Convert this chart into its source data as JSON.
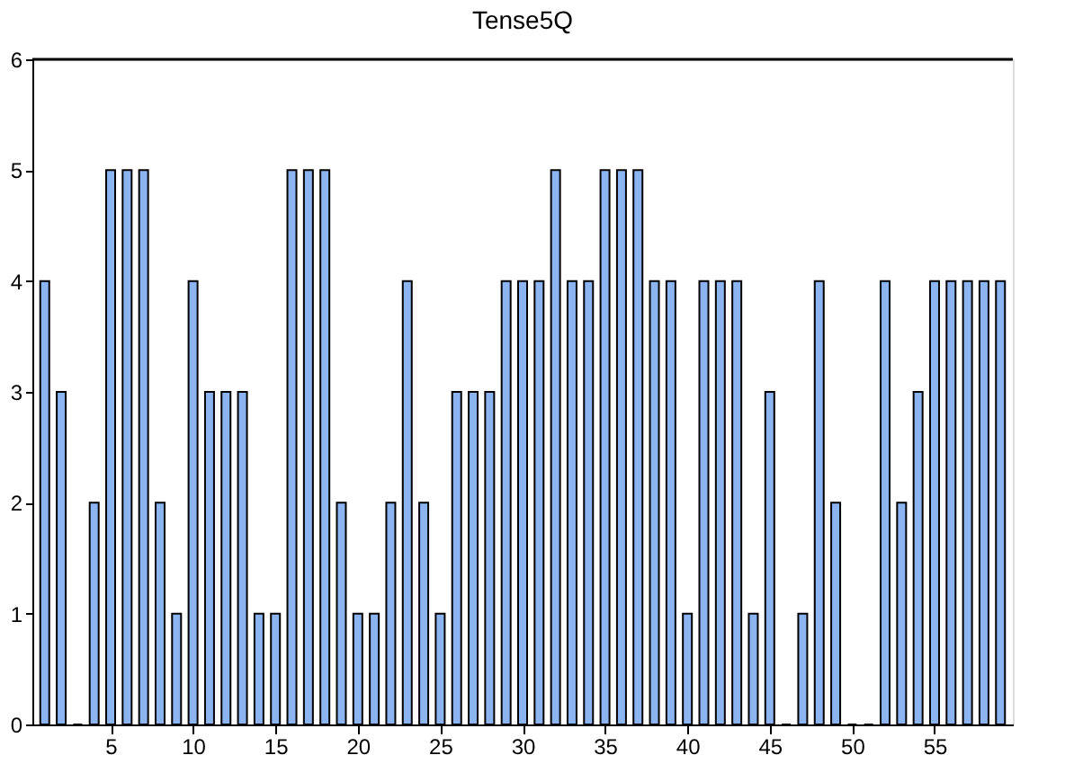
{
  "chart_data": {
    "type": "bar",
    "title": "Tense5Q",
    "x": [
      1,
      2,
      3,
      4,
      5,
      6,
      7,
      8,
      9,
      10,
      11,
      12,
      13,
      14,
      15,
      16,
      17,
      18,
      19,
      20,
      21,
      22,
      23,
      24,
      25,
      26,
      27,
      28,
      29,
      30,
      31,
      32,
      33,
      34,
      35,
      36,
      37,
      38,
      39,
      40,
      41,
      42,
      43,
      44,
      45,
      46,
      47,
      48,
      49,
      50,
      51,
      52,
      53,
      54,
      55,
      56,
      57,
      58,
      59
    ],
    "values": [
      4,
      3,
      0,
      2,
      5,
      5,
      5,
      2,
      1,
      4,
      3,
      3,
      3,
      1,
      1,
      5,
      5,
      5,
      2,
      1,
      1,
      2,
      4,
      2,
      1,
      3,
      3,
      3,
      4,
      4,
      4,
      5,
      4,
      4,
      5,
      5,
      5,
      4,
      4,
      1,
      4,
      4,
      4,
      1,
      3,
      0,
      1,
      4,
      2,
      0,
      0,
      4,
      2,
      3,
      4,
      4,
      4,
      4,
      4
    ],
    "color": "#8cb4f0",
    "xlim": [
      0.25,
      59.75
    ],
    "xticks": [
      5,
      10,
      15,
      20,
      25,
      30,
      35,
      40,
      45,
      50,
      55
    ],
    "ylim": [
      0,
      6
    ],
    "yticks": [
      0,
      1,
      2,
      3,
      4,
      5,
      6
    ],
    "grid": false
  }
}
